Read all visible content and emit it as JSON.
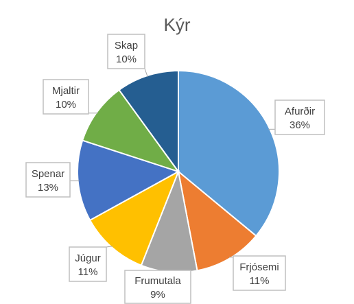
{
  "chart_data": {
    "type": "pie",
    "title": "Kýr",
    "slices": [
      {
        "label": "Afurðir",
        "value": 36,
        "value_label": "36%",
        "color": "#5b9bd5"
      },
      {
        "label": "Frjósemi",
        "value": 11,
        "value_label": "11%",
        "color": "#ed7d31"
      },
      {
        "label": "Frumutala",
        "value": 9,
        "value_label": "9%",
        "color": "#a5a5a5"
      },
      {
        "label": "Júgur",
        "value": 11,
        "value_label": "11%",
        "color": "#ffc000"
      },
      {
        "label": "Spenar",
        "value": 13,
        "value_label": "13%",
        "color": "#4472c4"
      },
      {
        "label": "Mjaltir",
        "value": 10,
        "value_label": "10%",
        "color": "#70ad47"
      },
      {
        "label": "Skap",
        "value": 10,
        "value_label": "10%",
        "color": "#255e91"
      }
    ],
    "start": "12 o'clock",
    "direction": "clockwise",
    "legend": "none"
  }
}
